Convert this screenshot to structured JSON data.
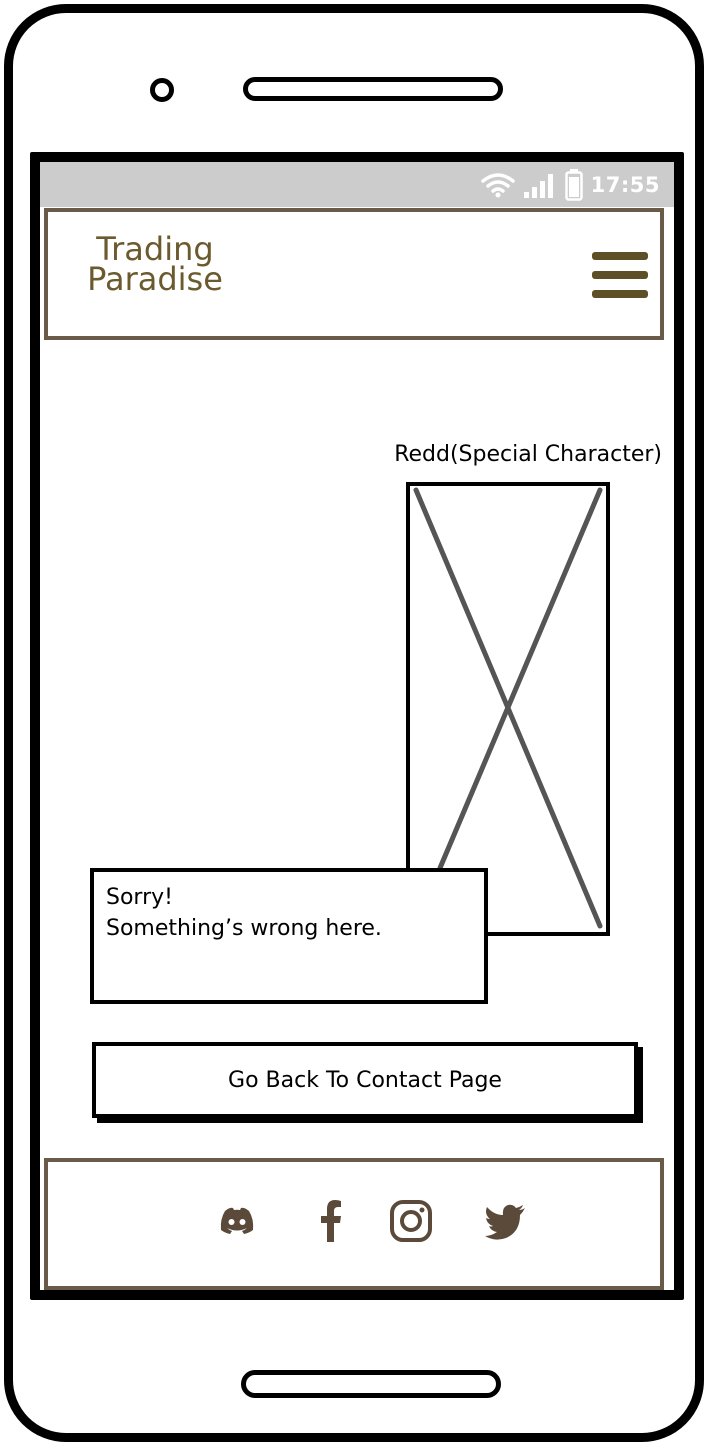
{
  "status_bar": {
    "time": "17:55",
    "icons": [
      "wifi-icon",
      "signal-icon",
      "battery-icon"
    ],
    "text_color": "#ffffff",
    "background": "#cccccc"
  },
  "header": {
    "logo_line1": "Trading",
    "logo_line2": "Paradise",
    "menu_icon": "hamburger-menu-icon",
    "logo_color": "#6b5a2e",
    "border_color": "#6a5a48"
  },
  "main": {
    "character_label": "Redd(Special Character)",
    "error_line1": "Sorry!",
    "error_line2": "Something’s wrong here.",
    "back_button_label": "Go Back To Contact Page"
  },
  "footer": {
    "social_icons": [
      "discord-icon",
      "facebook-icon",
      "instagram-icon",
      "twitter-icon"
    ],
    "icon_color": "#5b4a3a"
  }
}
